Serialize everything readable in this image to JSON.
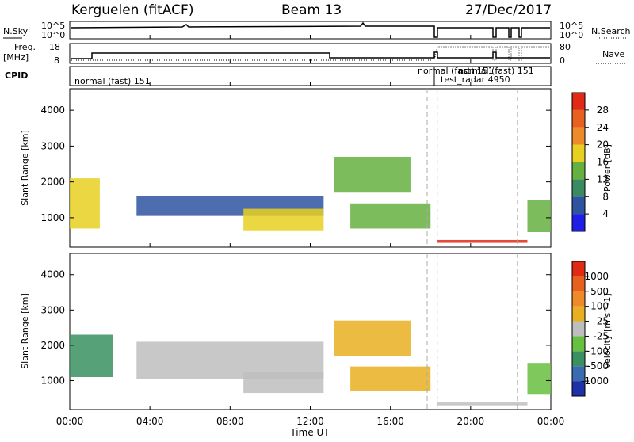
{
  "header": {
    "station": "Kerguelen (fitACF)",
    "beam": "Beam 13",
    "date": "27/Dec/2017"
  },
  "panels": {
    "nsky": {
      "left_label": "N.Sky",
      "right_label": "N.Search",
      "left_ticks": [
        "10^5",
        "10^0"
      ],
      "right_ticks": [
        "10^5",
        "10^0"
      ]
    },
    "freq": {
      "left_label_1": "Freq.",
      "left_label_2": "[MHz]",
      "right_label": "Nave",
      "left_ticks": [
        "18",
        "8"
      ],
      "right_ticks": [
        "80",
        "0"
      ]
    },
    "cpid": {
      "label": "CPID",
      "modes": [
        "normal (fast) 151",
        "normal (fast) 151",
        "normal (fast) 151",
        "test_radar 4950"
      ]
    }
  },
  "chart_data": [
    {
      "type": "heatmap",
      "title": "",
      "xlabel": "Time UT",
      "ylabel": "Slant Range [km]",
      "xlim": [
        "00:00",
        "24:00"
      ],
      "ylim": [
        180,
        4600
      ],
      "y_ticks": [
        "1000",
        "2000",
        "3000",
        "4000"
      ],
      "x_ticks": [
        "00:00",
        "04:00",
        "08:00",
        "12:00",
        "16:00",
        "20:00",
        "00:00"
      ],
      "colorbar": {
        "label": "Power [dB]",
        "ticks": [
          "4",
          "8",
          "12",
          "16",
          "20",
          "24",
          "28"
        ],
        "range": [
          0,
          30
        ],
        "colors": [
          "#1e1ee6",
          "#2e54a0",
          "#3a8a62",
          "#66b040",
          "#e8d020",
          "#ee8a2a",
          "#e8601e",
          "#e02a16"
        ]
      },
      "echo_regions": [
        {
          "t_start": "00:00",
          "t_end": "01:30",
          "range_min": 700,
          "range_max": 2100,
          "value": 18
        },
        {
          "t_start": "03:20",
          "t_end": "12:40",
          "range_min": 1050,
          "range_max": 1600,
          "value": 7
        },
        {
          "t_start": "08:40",
          "t_end": "12:40",
          "range_min": 650,
          "range_max": 1250,
          "value": 16
        },
        {
          "t_start": "13:10",
          "t_end": "17:00",
          "range_min": 1700,
          "range_max": 2700,
          "value": 14
        },
        {
          "t_start": "14:00",
          "t_end": "18:00",
          "range_min": 700,
          "range_max": 1400,
          "value": 13
        },
        {
          "t_start": "18:20",
          "t_end": "22:50",
          "range_min": 300,
          "range_max": 380,
          "value": 29
        },
        {
          "t_start": "22:50",
          "t_end": "24:00",
          "range_min": 600,
          "range_max": 1500,
          "value": 14
        }
      ]
    },
    {
      "type": "heatmap",
      "title": "",
      "xlabel": "Time UT",
      "ylabel": "Slant Range [km]",
      "xlim": [
        "00:00",
        "24:00"
      ],
      "ylim": [
        180,
        4600
      ],
      "y_ticks": [
        "1000",
        "2000",
        "3000",
        "4000"
      ],
      "x_ticks": [
        "00:00",
        "04:00",
        "08:00",
        "12:00",
        "16:00",
        "20:00",
        "00:00"
      ],
      "colorbar": {
        "label": "Velocity [m s^-1]",
        "ticks": [
          "1000",
          "500",
          "100",
          "25",
          "-25",
          "-100",
          "-500",
          "-1000"
        ],
        "range": [
          -1000,
          1000
        ],
        "colors": [
          "#2030a8",
          "#3a6ab0",
          "#3a9060",
          "#68c040",
          "#bebebe",
          "#e8b020",
          "#ee8a2a",
          "#e8601e",
          "#e02a16"
        ]
      },
      "echo_regions": [
        {
          "t_start": "00:00",
          "t_end": "02:10",
          "range_min": 1100,
          "range_max": 2300,
          "value": -400
        },
        {
          "t_start": "03:20",
          "t_end": "12:40",
          "range_min": 1050,
          "range_max": 2100,
          "value": 0
        },
        {
          "t_start": "08:40",
          "t_end": "12:40",
          "range_min": 650,
          "range_max": 1250,
          "value": 10
        },
        {
          "t_start": "13:10",
          "t_end": "17:00",
          "range_min": 1700,
          "range_max": 2700,
          "value": 150
        },
        {
          "t_start": "14:00",
          "t_end": "18:00",
          "range_min": 700,
          "range_max": 1400,
          "value": 200
        },
        {
          "t_start": "18:20",
          "t_end": "22:50",
          "range_min": 300,
          "range_max": 380,
          "value": 0
        },
        {
          "t_start": "22:50",
          "t_end": "24:00",
          "range_min": 600,
          "range_max": 1500,
          "value": -300
        }
      ]
    }
  ]
}
